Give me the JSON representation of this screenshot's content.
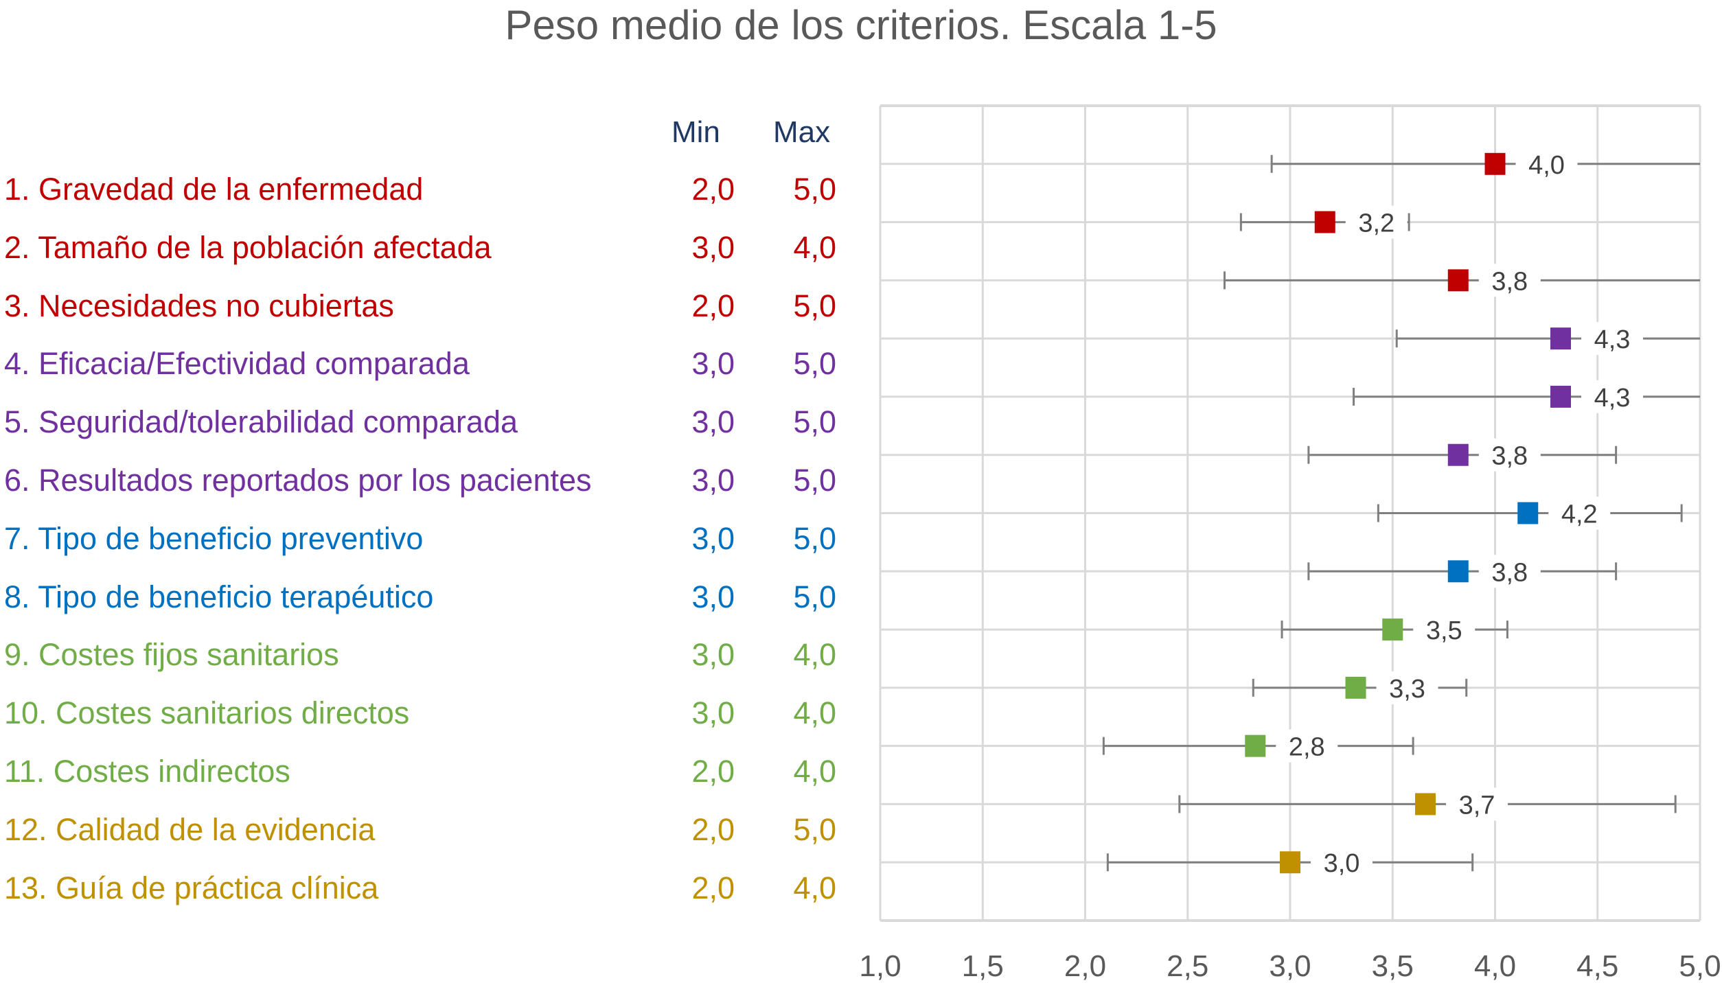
{
  "chart_data": {
    "type": "scatter",
    "title": "Peso medio de los criterios. Escala 1-5",
    "xlim": [
      1.0,
      5.0
    ],
    "x_ticks": [
      "1,0",
      "1,5",
      "2,0",
      "2,5",
      "3,0",
      "3,5",
      "4,0",
      "4,5",
      "5,0"
    ],
    "grid": true,
    "table_headers": {
      "min": "Min",
      "max": "Max"
    },
    "criteria": [
      {
        "label": "1. Gravedad de la enfermedad",
        "min": "2,0",
        "max": "5,0",
        "mean": 4.0,
        "mean_label": "4,0",
        "err_low": 2.91,
        "err_high": 5.09,
        "color": "#c00000"
      },
      {
        "label": "2. Tamaño de la población afectada",
        "min": "3,0",
        "max": "4,0",
        "mean": 3.17,
        "mean_label": "3,2",
        "err_low": 2.76,
        "err_high": 3.58,
        "color": "#c00000"
      },
      {
        "label": "3. Necesidades no cubiertas",
        "min": "2,0",
        "max": "5,0",
        "mean": 3.82,
        "mean_label": "3,8",
        "err_low": 2.68,
        "err_high": 5.05,
        "color": "#c00000"
      },
      {
        "label": "4. Eficacia/Efectividad comparada",
        "min": "3,0",
        "max": "5,0",
        "mean": 4.32,
        "mean_label": "4,3",
        "err_low": 3.52,
        "err_high": 5.12,
        "color": "#7030a0"
      },
      {
        "label": "5. Seguridad/tolerabilidad comparada",
        "min": "3,0",
        "max": "5,0",
        "mean": 4.32,
        "mean_label": "4,3",
        "err_low": 3.31,
        "err_high": 5.33,
        "color": "#7030a0"
      },
      {
        "label": "6. Resultados reportados por los pacientes",
        "min": "3,0",
        "max": "5,0",
        "mean": 3.82,
        "mean_label": "3,8",
        "err_low": 3.09,
        "err_high": 4.59,
        "color": "#7030a0"
      },
      {
        "label": "7. Tipo de beneficio preventivo",
        "min": "3,0",
        "max": "5,0",
        "mean": 4.16,
        "mean_label": "4,2",
        "err_low": 3.43,
        "err_high": 4.91,
        "color": "#0070c0"
      },
      {
        "label": "8. Tipo de beneficio terapéutico",
        "min": "3,0",
        "max": "5,0",
        "mean": 3.82,
        "mean_label": "3,8",
        "err_low": 3.09,
        "err_high": 4.59,
        "color": "#0070c0"
      },
      {
        "label": "9. Costes fijos sanitarios",
        "min": "3,0",
        "max": "4,0",
        "mean": 3.5,
        "mean_label": "3,5",
        "err_low": 2.96,
        "err_high": 4.06,
        "color": "#70ad47"
      },
      {
        "label": "10. Costes sanitarios directos",
        "min": "3,0",
        "max": "4,0",
        "mean": 3.32,
        "mean_label": "3,3",
        "err_low": 2.82,
        "err_high": 3.86,
        "color": "#70ad47"
      },
      {
        "label": "11. Costes indirectos",
        "min": "2,0",
        "max": "4,0",
        "mean": 2.83,
        "mean_label": "2,8",
        "err_low": 2.09,
        "err_high": 3.6,
        "color": "#70ad47"
      },
      {
        "label": "12. Calidad de la evidencia",
        "min": "2,0",
        "max": "5,0",
        "mean": 3.66,
        "mean_label": "3,7",
        "err_low": 2.46,
        "err_high": 4.88,
        "color": "#bf9000"
      },
      {
        "label": "13. Guía de práctica clínica",
        "min": "2,0",
        "max": "4,0",
        "mean": 3.0,
        "mean_label": "3,0",
        "err_low": 2.11,
        "err_high": 3.89,
        "color": "#bf9000"
      }
    ]
  }
}
